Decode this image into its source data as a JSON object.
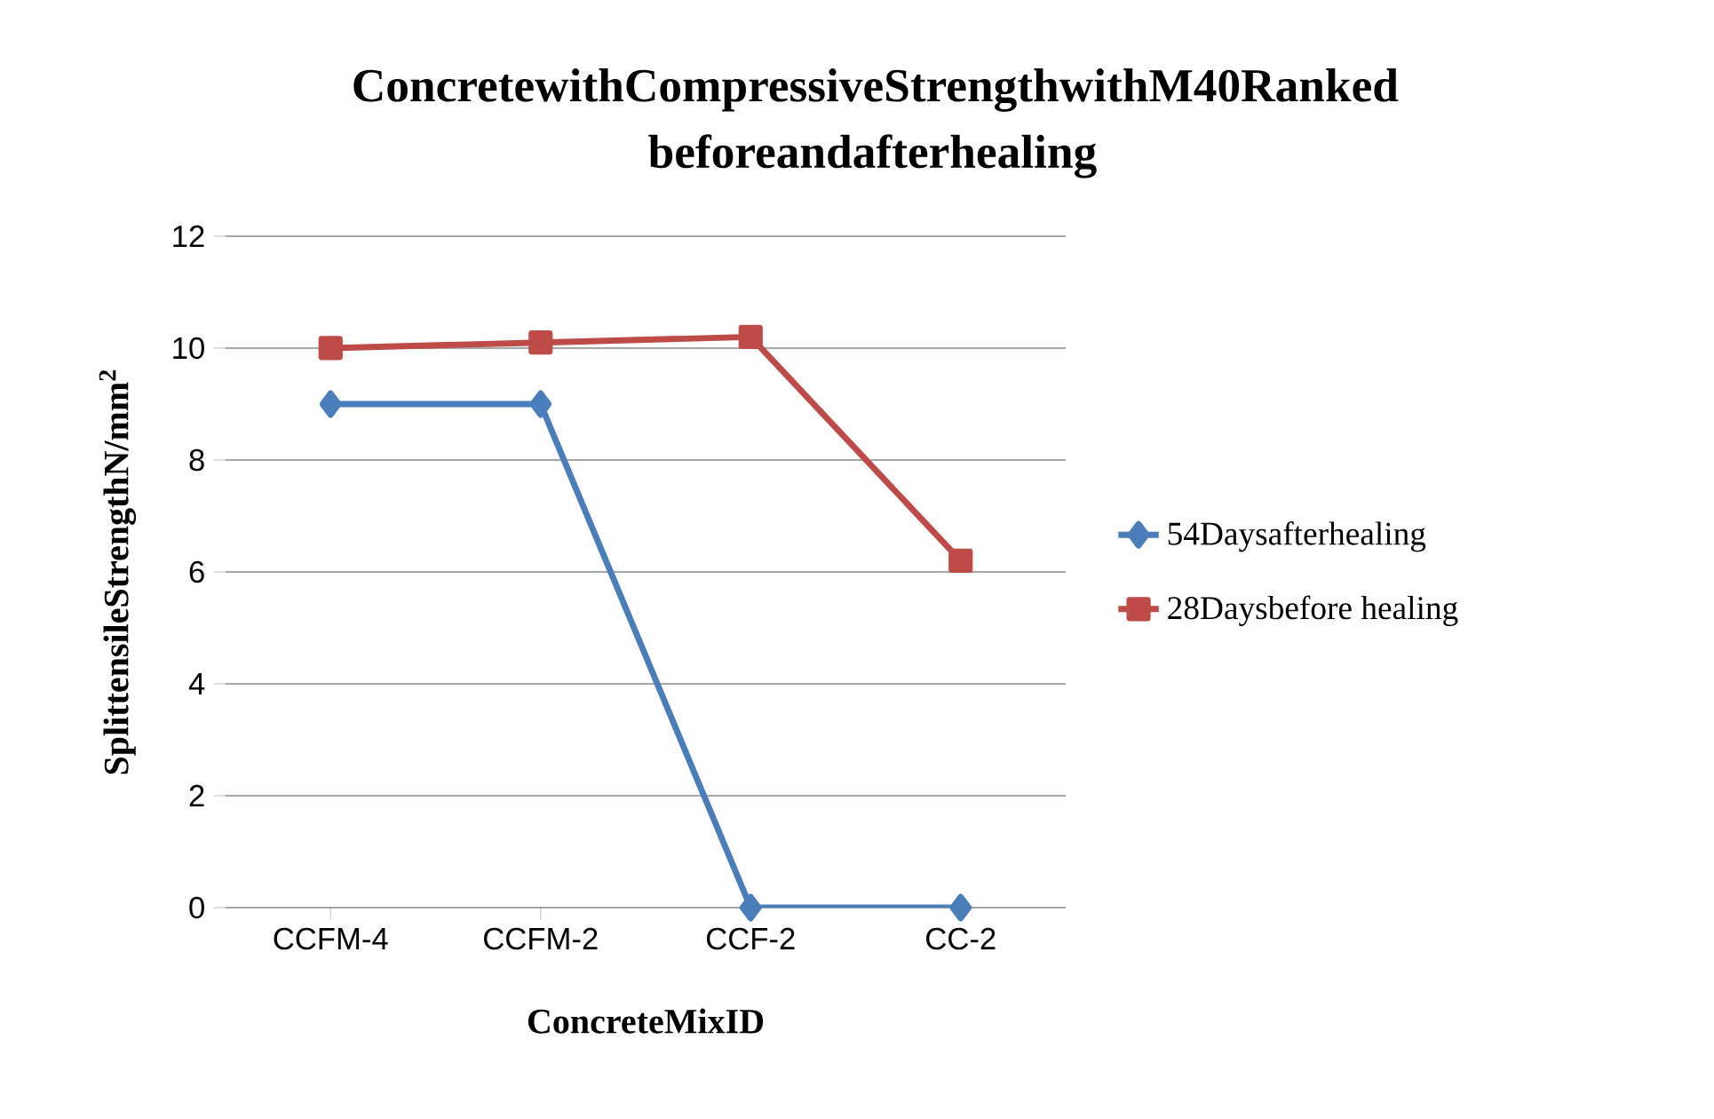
{
  "chart_data": {
    "type": "line",
    "title": "ConcretewithCompressiveStrengthwithM40Ranked beforeandafterhealing",
    "xlabel": "ConcreteMixID",
    "ylabel": "SplittensileStrengthN/mm$^{2}$",
    "categories": [
      "CCFM-4",
      "CCFM-2",
      "CCF-2",
      "CC-2"
    ],
    "series": [
      {
        "name": "54Daysafterhealing",
        "color": "#4a7ebb",
        "marker": "diamond",
        "values": [
          9,
          9,
          0,
          0
        ]
      },
      {
        "name": "28Daysbefore healing",
        "color": "#be4b48",
        "marker": "square",
        "values": [
          10,
          10.1,
          10.2,
          6.2
        ]
      }
    ],
    "ylim": [
      0,
      12
    ],
    "yticks": [
      0,
      2,
      4,
      6,
      8,
      10,
      12
    ],
    "grid": "y",
    "legend": "right"
  }
}
